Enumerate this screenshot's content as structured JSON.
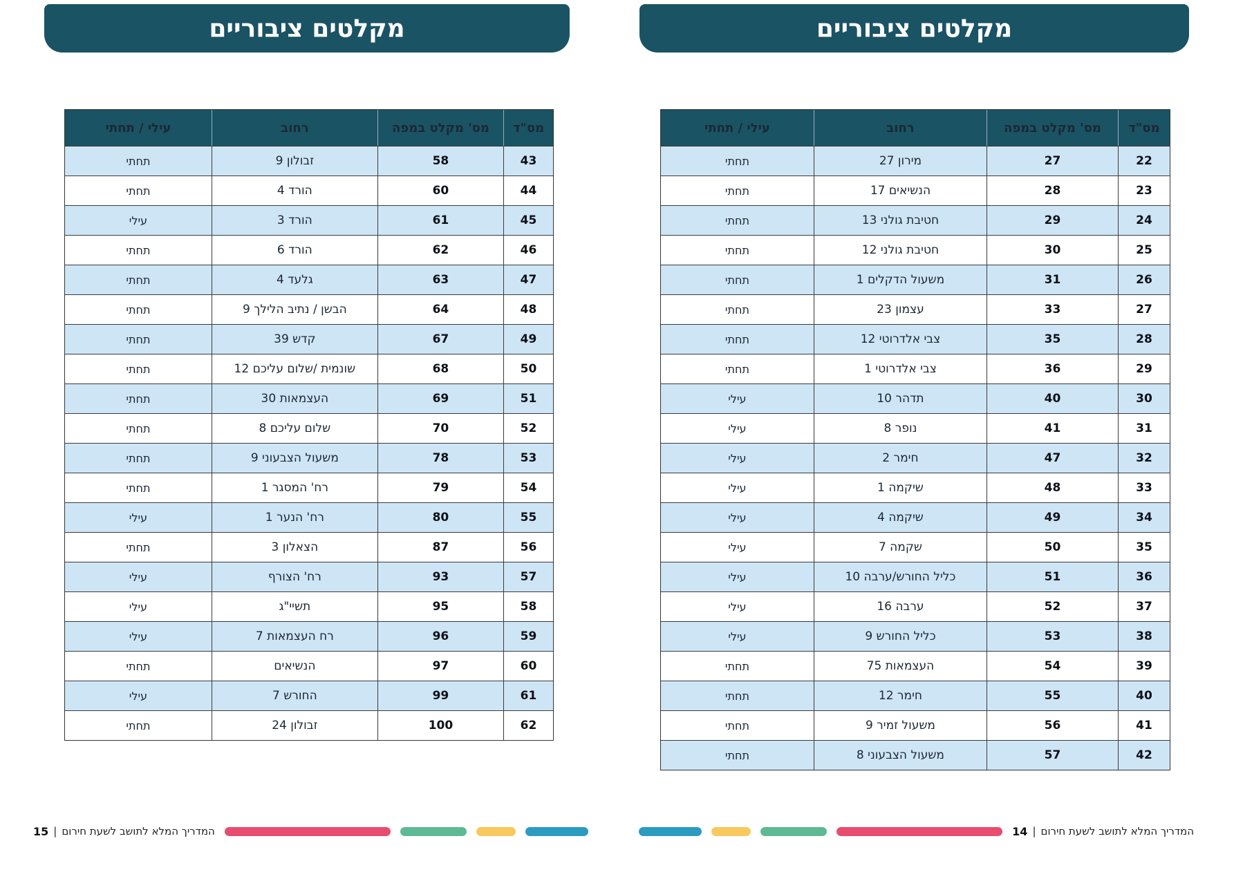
{
  "banner_title": "מקלטים ציבוריים",
  "columns": {
    "serial": "מס\"ד",
    "map_number": "מס' מקלט במפה",
    "street": "רחוב",
    "level": "עילי / תחתי"
  },
  "footer": {
    "guide_text": "המדריך המלא לתושב לשעת חירום",
    "divider": "|"
  },
  "colors": {
    "header_teal": "#1a5364",
    "row_alt": "#cee5f6",
    "bar_pink": "#e84c6e",
    "bar_green": "#5dba94",
    "bar_yellow": "#f8c95d",
    "bar_blue": "#2b9bc0"
  },
  "pages": [
    {
      "id": "right",
      "page_number": "14",
      "rows": [
        {
          "serial": "22",
          "map_number": "27",
          "street": "מירון 27",
          "level": "תחתי"
        },
        {
          "serial": "23",
          "map_number": "28",
          "street": "הנשיאים 17",
          "level": "תחתי"
        },
        {
          "serial": "24",
          "map_number": "29",
          "street": "חטיבת גולני 13",
          "level": "תחתי"
        },
        {
          "serial": "25",
          "map_number": "30",
          "street": "חטיבת גולני 12",
          "level": "תחתי"
        },
        {
          "serial": "26",
          "map_number": "31",
          "street": "משעול הדקלים 1",
          "level": "תחתי"
        },
        {
          "serial": "27",
          "map_number": "33",
          "street": "עצמון 23",
          "level": "תחתי"
        },
        {
          "serial": "28",
          "map_number": "35",
          "street": "צבי אלדרוטי 12",
          "level": "תחתי"
        },
        {
          "serial": "29",
          "map_number": "36",
          "street": "צבי אלדרוטי 1",
          "level": "תחתי"
        },
        {
          "serial": "30",
          "map_number": "40",
          "street": "תדהר 10",
          "level": "עילי"
        },
        {
          "serial": "31",
          "map_number": "41",
          "street": "נופר 8",
          "level": "עילי"
        },
        {
          "serial": "32",
          "map_number": "47",
          "street": "חימר 2",
          "level": "עילי"
        },
        {
          "serial": "33",
          "map_number": "48",
          "street": "שיקמה 1",
          "level": "עילי"
        },
        {
          "serial": "34",
          "map_number": "49",
          "street": "שיקמה 4",
          "level": "עילי"
        },
        {
          "serial": "35",
          "map_number": "50",
          "street": "שקמה 7",
          "level": "עילי"
        },
        {
          "serial": "36",
          "map_number": "51",
          "street": "כליל החורש/ערבה 10",
          "level": "עילי"
        },
        {
          "serial": "37",
          "map_number": "52",
          "street": "ערבה 16",
          "level": "עילי"
        },
        {
          "serial": "38",
          "map_number": "53",
          "street": "כליל החורש 9",
          "level": "עילי"
        },
        {
          "serial": "39",
          "map_number": "54",
          "street": "העצמאות 75",
          "level": "תחתי"
        },
        {
          "serial": "40",
          "map_number": "55",
          "street": "חימר 12",
          "level": "תחתי"
        },
        {
          "serial": "41",
          "map_number": "56",
          "street": "משעול זמיר 9",
          "level": "תחתי"
        },
        {
          "serial": "42",
          "map_number": "57",
          "street": "משעול הצבעוני 8",
          "level": "תחתי"
        }
      ]
    },
    {
      "id": "left",
      "page_number": "15",
      "rows": [
        {
          "serial": "43",
          "map_number": "58",
          "street": "זבולון 9",
          "level": "תחתי"
        },
        {
          "serial": "44",
          "map_number": "60",
          "street": "הורד 4",
          "level": "תחתי"
        },
        {
          "serial": "45",
          "map_number": "61",
          "street": "הורד 3",
          "level": "עילי"
        },
        {
          "serial": "46",
          "map_number": "62",
          "street": "הורד 6",
          "level": "תחתי"
        },
        {
          "serial": "47",
          "map_number": "63",
          "street": "גלעד 4",
          "level": "תחתי"
        },
        {
          "serial": "48",
          "map_number": "64",
          "street": "הבשן / נתיב הלילך 9",
          "level": "תחתי"
        },
        {
          "serial": "49",
          "map_number": "67",
          "street": "קדש 39",
          "level": "תחתי"
        },
        {
          "serial": "50",
          "map_number": "68",
          "street": "שונמית /שלום עליכם 12",
          "level": "תחתי"
        },
        {
          "serial": "51",
          "map_number": "69",
          "street": "העצמאות 30",
          "level": "תחתי"
        },
        {
          "serial": "52",
          "map_number": "70",
          "street": "שלום עליכם 8",
          "level": "תחתי"
        },
        {
          "serial": "53",
          "map_number": "78",
          "street": "משעול הצבעוני 9",
          "level": "תחתי"
        },
        {
          "serial": "54",
          "map_number": "79",
          "street": "רח' המסגר 1",
          "level": "תחתי"
        },
        {
          "serial": "55",
          "map_number": "80",
          "street": "רח' הנער 1",
          "level": "עילי"
        },
        {
          "serial": "56",
          "map_number": "87",
          "street": "הצאלון 3",
          "level": "תחתי"
        },
        {
          "serial": "57",
          "map_number": "93",
          "street": "רח' הצורף",
          "level": "עילי"
        },
        {
          "serial": "58",
          "map_number": "95",
          "street": "תשיי\"ג",
          "level": "עילי"
        },
        {
          "serial": "59",
          "map_number": "96",
          "street": "רח העצמאות 7",
          "level": "עילי"
        },
        {
          "serial": "60",
          "map_number": "97",
          "street": "הנשיאים",
          "level": "תחתי"
        },
        {
          "serial": "61",
          "map_number": "99",
          "street": "החורש 7",
          "level": "עילי"
        },
        {
          "serial": "62",
          "map_number": "100",
          "street": "זבולון 24",
          "level": "תחתי"
        }
      ]
    }
  ]
}
